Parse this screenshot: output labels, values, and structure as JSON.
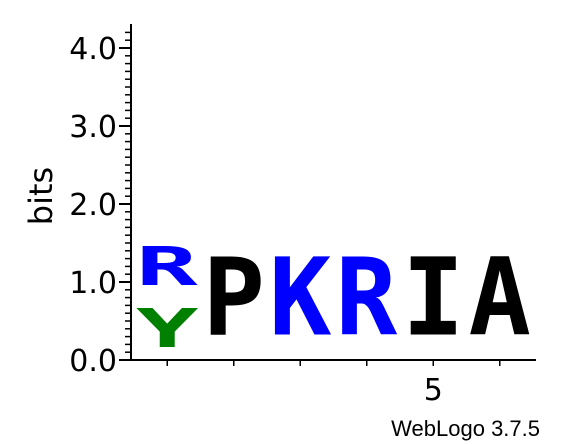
{
  "chart_data": {
    "type": "sequence-logo",
    "ylabel": "bits",
    "ylim": [
      0,
      4.3
    ],
    "y_ticks": [
      0.0,
      1.0,
      2.0,
      3.0,
      4.0
    ],
    "y_tick_labels": [
      "0.0",
      "1.0",
      "2.0",
      "3.0",
      "4.0"
    ],
    "x_tick_labels": [
      {
        "position": 5,
        "label": "5"
      }
    ],
    "positions": [
      {
        "position": 1,
        "letters": [
          {
            "char": "Y",
            "bits": 0.8,
            "color": "#008000"
          },
          {
            "char": "R",
            "bits": 0.8,
            "color": "#0000ff"
          }
        ]
      },
      {
        "position": 2,
        "letters": [
          {
            "char": "P",
            "bits": 1.6,
            "color": "#000000"
          }
        ]
      },
      {
        "position": 3,
        "letters": [
          {
            "char": "K",
            "bits": 1.6,
            "color": "#0000ff"
          }
        ]
      },
      {
        "position": 4,
        "letters": [
          {
            "char": "R",
            "bits": 1.6,
            "color": "#0000ff"
          }
        ]
      },
      {
        "position": 5,
        "letters": [
          {
            "char": "I",
            "bits": 1.6,
            "color": "#000000"
          }
        ]
      },
      {
        "position": 6,
        "letters": [
          {
            "char": "A",
            "bits": 1.6,
            "color": "#000000"
          }
        ]
      }
    ]
  },
  "footer": {
    "credit": "WebLogo 3.7.5"
  }
}
